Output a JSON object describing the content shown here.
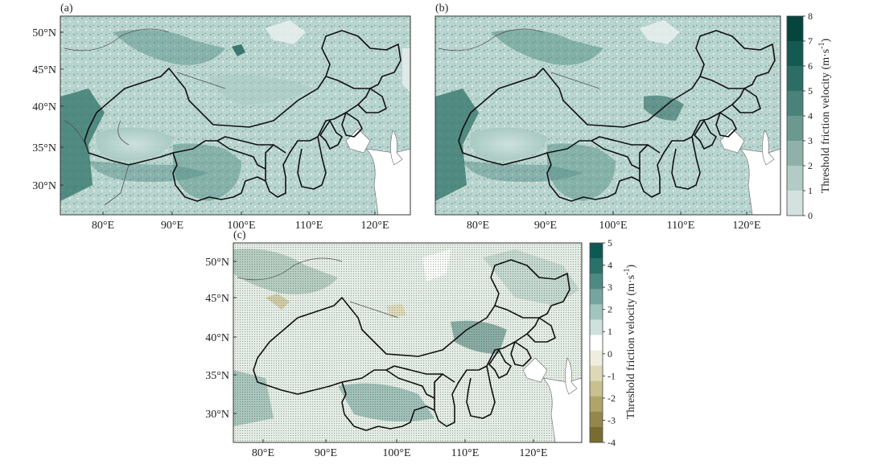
{
  "panels": [
    {
      "id": "a",
      "label": "(a)",
      "lat_ticks": [
        "50°N",
        "45°N",
        "40°N",
        "35°N",
        "30°N"
      ],
      "lon_ticks": [
        "80°E",
        "90°E",
        "100°E",
        "110°E",
        "120°E"
      ]
    },
    {
      "id": "b",
      "label": "(b)",
      "lon_ticks": [
        "80°E",
        "90°E",
        "100°E",
        "110°E",
        "120°E"
      ]
    },
    {
      "id": "c",
      "label": "(c)",
      "lat_ticks": [
        "50°N",
        "45°N",
        "40°N",
        "35°N",
        "30°N"
      ],
      "lon_ticks": [
        "80°E",
        "90°E",
        "100°E",
        "110°E",
        "120°E"
      ]
    }
  ],
  "colorbar_top": {
    "title": "Threshold friction velocity (m·s",
    "title_sup": "-1",
    "title_end": ")",
    "ticks": [
      "8",
      "7",
      "6",
      "5",
      "4",
      "3",
      "2",
      "1",
      "0"
    ],
    "colors": [
      "#04463e",
      "#155a52",
      "#2c6d65",
      "#4a8279",
      "#6b9990",
      "#8fb1aa",
      "#b2cbc6",
      "#d4e2df"
    ]
  },
  "colorbar_bottom": {
    "title": "Threshold friction velocity (m·s",
    "title_sup": "-1",
    "title_end": ")",
    "ticks": [
      "5",
      "4",
      "3",
      "2",
      "1",
      "0",
      "-1",
      "-2",
      "-3",
      "-4"
    ],
    "colors": [
      "#0d5a55",
      "#2a716a",
      "#4c8a82",
      "#75a59e",
      "#a2c4bf",
      "#cfe1dd",
      "#ffffff",
      "#efeede",
      "#ddd9b8",
      "#c8c08f",
      "#b0a469",
      "#94874a",
      "#7a6c30"
    ]
  }
}
